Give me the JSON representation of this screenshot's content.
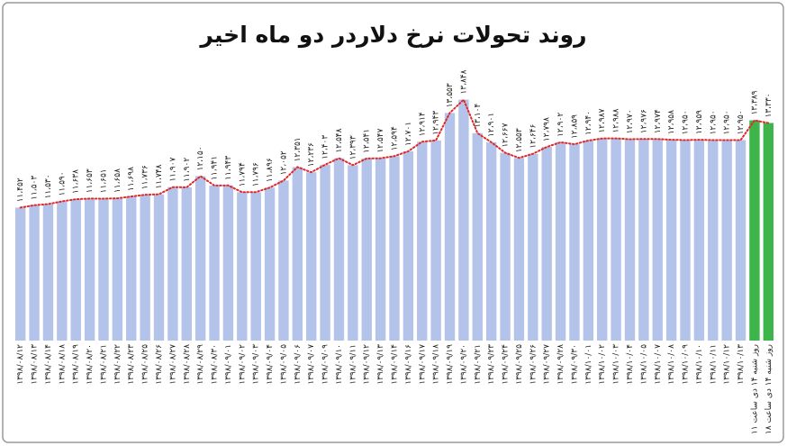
{
  "chart_data": {
    "type": "bar",
    "title": "روند تحولات نرخ دلاردر دو ماه اخیر",
    "categories": [
      "۱۳۹۸/۰۸/۱۲",
      "۱۳۹۸/۰۸/۱۳",
      "۱۳۹۸/۰۸/۱۴",
      "۱۳۹۸/۰۸/۱۸",
      "۱۳۹۸/۰۸/۱۹",
      "۱۳۹۸/۰۸/۲۰",
      "۱۳۹۸/۰۸/۲۱",
      "۱۳۹۸/۰۸/۲۲",
      "۱۳۹۸/۰۸/۲۳",
      "۱۳۹۸/۰۸/۲۵",
      "۱۳۹۸/۰۸/۲۶",
      "۱۳۹۸/۰۸/۲۷",
      "۱۳۹۸/۰۸/۲۸",
      "۱۳۹۸/۰۸/۲۹",
      "۱۳۹۸/۰۸/۳۰",
      "۱۳۹۸/۰۹/۰۱",
      "۱۳۹۸/۰۹/۰۲",
      "۱۳۹۸/۰۹/۰۳",
      "۱۳۹۸/۰۹/۰۴",
      "۱۳۹۸/۰۹/۰۵",
      "۱۳۹۸/۰۹/۰۶",
      "۱۳۹۸/۰۹/۰۷",
      "۱۳۹۸/۰۹/۰۹",
      "۱۳۹۸/۰۹/۱۰",
      "۱۳۹۸/۰۹/۱۱",
      "۱۳۹۸/۰۹/۱۲",
      "۱۳۹۸/۰۹/۱۳",
      "۱۳۹۸/۰۹/۱۴",
      "۱۳۹۸/۰۹/۱۶",
      "۱۳۹۸/۰۹/۱۷",
      "۱۳۹۸/۰۹/۱۸",
      "۱۳۹۸/۰۹/۱۹",
      "۱۳۹۸/۰۹/۲۰",
      "۱۳۹۸/۰۹/۲۱",
      "۱۳۹۸/۰۹/۲۳",
      "۱۳۹۸/۰۹/۲۴",
      "۱۳۹۸/۰۹/۲۵",
      "۱۳۹۸/۰۹/۲۶",
      "۱۳۹۸/۰۹/۲۷",
      "۱۳۹۸/۰۹/۲۸",
      "۱۳۹۸/۰۹/۳۰",
      "۱۳۹۸/۱۰/۰۱",
      "۱۳۹۸/۱۰/۰۲",
      "۱۳۹۸/۱۰/۰۳",
      "۱۳۹۸/۱۰/۰۴",
      "۱۳۹۸/۱۰/۰۵",
      "۱۳۹۸/۱۰/۰۷",
      "۱۳۹۸/۱۰/۰۸",
      "۱۳۹۸/۱۰/۰۹",
      "۱۳۹۸/۱۰/۱۰",
      "۱۳۹۸/۱۰/۱۱",
      "۱۳۹۸/۱۰/۱۲",
      "۱۳۹۸/۱۰/۱۳",
      "روز شنبه ۱۴ دی ساعت ۱۱",
      "روز شنبه ۱۴ دی ساعت ۱۸"
    ],
    "values": [
      11452,
      11503,
      11530,
      11590,
      11638,
      11653,
      11651,
      11658,
      11698,
      11736,
      11748,
      11907,
      11902,
      12150,
      11941,
      11943,
      11794,
      11796,
      11896,
      12052,
      12351,
      12236,
      12403,
      12548,
      12393,
      12541,
      12547,
      12594,
      12701,
      12914,
      12943,
      13553,
      13848,
      13104,
      12901,
      12667,
      12553,
      12646,
      12798,
      12902,
      12859,
      12940,
      12987,
      12988,
      12970,
      12976,
      12974,
      12958,
      12950,
      12959,
      12950,
      12950,
      12950,
      13389,
      13330
    ],
    "value_labels": [
      "۱۱،۴۵۲",
      "۱۱،۵۰۳",
      "۱۱،۵۳۰",
      "۱۱،۵۹۰",
      "۱۱،۶۳۸",
      "۱۱،۶۵۳",
      "۱۱،۶۵۱",
      "۱۱،۶۵۸",
      "۱۱،۶۹۸",
      "۱۱،۷۳۶",
      "۱۱،۷۴۸",
      "۱۱،۹۰۷",
      "۱۱،۹۰۲",
      "۱۲،۱۵۰",
      "۱۱،۹۴۱",
      "۱۱،۹۴۳",
      "۱۱،۷۹۴",
      "۱۱،۷۹۶",
      "۱۱،۸۹۶",
      "۱۲،۰۵۲",
      "۱۲،۳۵۱",
      "۱۲،۲۳۶",
      "۱۲،۴۰۳",
      "۱۲،۵۴۸",
      "۱۲،۳۹۳",
      "۱۲،۵۴۱",
      "۱۲،۵۴۷",
      "۱۲،۵۹۴",
      "۱۲،۷۰۱",
      "۱۲،۹۱۴",
      "۱۲،۹۴۳",
      "۱۳،۵۵۳",
      "۱۳،۸۴۸",
      "۱۳،۱۰۴",
      "۱۲،۹۰۱",
      "۱۲،۶۶۷",
      "۱۲،۵۵۳",
      "۱۲،۶۴۶",
      "۱۲،۷۹۸",
      "۱۲،۹۰۲",
      "۱۲،۸۵۹",
      "۱۲،۹۴۰",
      "۱۲،۹۸۷",
      "۱۲،۹۸۸",
      "۱۲،۹۷۰",
      "۱۲،۹۷۶",
      "۱۲،۹۷۴",
      "۱۲،۹۵۸",
      "۱۲،۹۵۰",
      "۱۲،۹۵۹",
      "۱۲،۹۵۰",
      "۱۲،۹۵۰",
      "۱۲،۹۵۰",
      "۱۳،۳۸۹",
      "۱۳،۳۳۰"
    ],
    "colors": [
      "#b3c3ea",
      "#b3c3ea",
      "#b3c3ea",
      "#b3c3ea",
      "#b3c3ea",
      "#b3c3ea",
      "#b3c3ea",
      "#b3c3ea",
      "#b3c3ea",
      "#b3c3ea",
      "#b3c3ea",
      "#b3c3ea",
      "#b3c3ea",
      "#b3c3ea",
      "#b3c3ea",
      "#b3c3ea",
      "#b3c3ea",
      "#b3c3ea",
      "#b3c3ea",
      "#b3c3ea",
      "#b3c3ea",
      "#b3c3ea",
      "#b3c3ea",
      "#b3c3ea",
      "#b3c3ea",
      "#b3c3ea",
      "#b3c3ea",
      "#b3c3ea",
      "#b3c3ea",
      "#b3c3ea",
      "#b3c3ea",
      "#b3c3ea",
      "#b3c3ea",
      "#b3c3ea",
      "#b3c3ea",
      "#b3c3ea",
      "#b3c3ea",
      "#b3c3ea",
      "#b3c3ea",
      "#b3c3ea",
      "#b3c3ea",
      "#b3c3ea",
      "#b3c3ea",
      "#b3c3ea",
      "#b3c3ea",
      "#b3c3ea",
      "#b3c3ea",
      "#b3c3ea",
      "#b3c3ea",
      "#b3c3ea",
      "#b3c3ea",
      "#b3c3ea",
      "#b3c3ea",
      "#3db54a",
      "#3db54a"
    ],
    "line_color": "#e02828",
    "ylim": [
      8500,
      14200
    ]
  }
}
